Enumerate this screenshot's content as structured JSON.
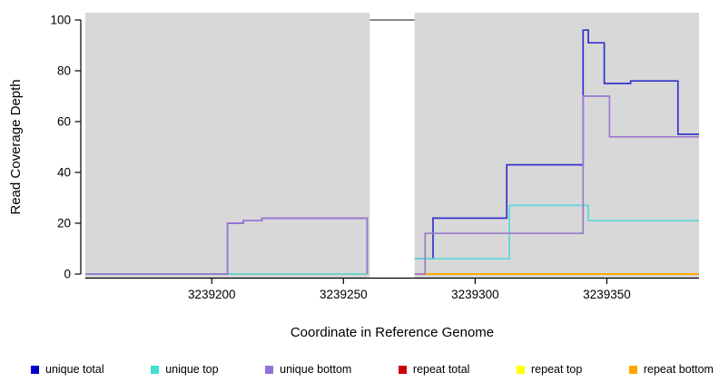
{
  "chart_data": {
    "type": "line",
    "step": true,
    "title": "",
    "xlabel": "Coordinate in Reference Genome",
    "ylabel": "Read Coverage Depth",
    "xlim": [
      3239152,
      3239385
    ],
    "ylim": [
      0,
      100
    ],
    "xticks": [
      3239200,
      3239250,
      3239300,
      3239350
    ],
    "yticks": [
      0,
      20,
      40,
      60,
      80,
      100
    ],
    "plot_background": "#d8d8d8",
    "masked_region": {
      "x0": 3239260,
      "x1": 3239277
    },
    "masked_region_top_value": 100,
    "series": [
      {
        "name": "repeat total",
        "color": "#CC0000",
        "segments": [
          [
            [
              3239152,
              0
            ],
            [
              3239259,
              0
            ]
          ],
          [
            [
              3239277,
              0
            ],
            [
              3239385,
              0
            ]
          ]
        ]
      },
      {
        "name": "repeat top",
        "color": "#FFFF00",
        "segments": [
          [
            [
              3239152,
              0
            ],
            [
              3239259,
              0
            ]
          ],
          [
            [
              3239277,
              0
            ],
            [
              3239385,
              0
            ]
          ]
        ]
      },
      {
        "name": "repeat bottom",
        "color": "#FFA500",
        "segments": [
          [
            [
              3239152,
              0
            ],
            [
              3239259,
              0
            ]
          ],
          [
            [
              3239277,
              0
            ],
            [
              3239385,
              0
            ]
          ]
        ]
      },
      {
        "name": "unique total",
        "color": "#3333CC",
        "segments": [
          [
            [
              3239152,
              0
            ],
            [
              3239206,
              0
            ],
            [
              3239206,
              20
            ],
            [
              3239212,
              20
            ],
            [
              3239212,
              21
            ],
            [
              3239219,
              21
            ],
            [
              3239219,
              22
            ],
            [
              3239259,
              22
            ],
            [
              3239259,
              0
            ]
          ],
          [
            [
              3239277,
              6
            ],
            [
              3239284,
              6
            ],
            [
              3239284,
              22
            ],
            [
              3239312,
              22
            ],
            [
              3239312,
              43
            ],
            [
              3239341,
              43
            ],
            [
              3239341,
              96
            ],
            [
              3239343,
              96
            ],
            [
              3239343,
              91
            ],
            [
              3239349,
              91
            ],
            [
              3239349,
              75
            ],
            [
              3239359,
              75
            ],
            [
              3239359,
              76
            ],
            [
              3239377,
              76
            ],
            [
              3239377,
              55
            ],
            [
              3239385,
              55
            ]
          ]
        ]
      },
      {
        "name": "unique top",
        "color": "#5BD8D8",
        "segments": [
          [
            [
              3239152,
              0
            ],
            [
              3239259,
              0
            ]
          ],
          [
            [
              3239277,
              6
            ],
            [
              3239313,
              6
            ],
            [
              3239313,
              27
            ],
            [
              3239343,
              27
            ],
            [
              3239343,
              21
            ],
            [
              3239385,
              21
            ]
          ]
        ]
      },
      {
        "name": "unique bottom",
        "color": "#9B79D0",
        "segments": [
          [
            [
              3239152,
              0
            ],
            [
              3239206,
              0
            ],
            [
              3239206,
              20
            ],
            [
              3239212,
              20
            ],
            [
              3239212,
              21
            ],
            [
              3239219,
              21
            ],
            [
              3239219,
              22
            ],
            [
              3239259,
              22
            ],
            [
              3239259,
              0
            ]
          ],
          [
            [
              3239277,
              0
            ],
            [
              3239281,
              0
            ],
            [
              3239281,
              16
            ],
            [
              3239341,
              16
            ],
            [
              3239341,
              70
            ],
            [
              3239351,
              70
            ],
            [
              3239351,
              54
            ],
            [
              3239385,
              54
            ]
          ]
        ]
      }
    ],
    "legend": [
      {
        "label": "unique total",
        "color": "#0000CD"
      },
      {
        "label": "unique top",
        "color": "#40E0D0"
      },
      {
        "label": "unique bottom",
        "color": "#9370DB"
      },
      {
        "label": "repeat total",
        "color": "#CC0000"
      },
      {
        "label": "repeat top",
        "color": "#FFFF00"
      },
      {
        "label": "repeat bottom",
        "color": "#FFA500"
      }
    ],
    "legend_position": "bottom",
    "grid": false
  }
}
